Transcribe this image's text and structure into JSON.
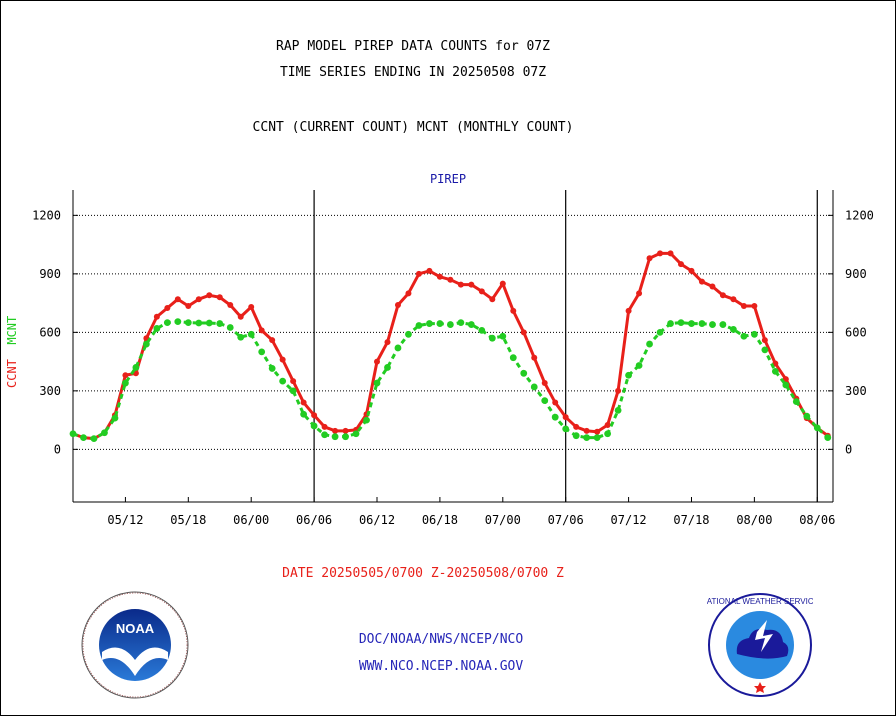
{
  "title_line1": "RAP MODEL PIREP DATA COUNTS for 07Z",
  "title_line2": "TIME SERIES ENDING IN 20250508 07Z",
  "title_line3": "CCNT (CURRENT COUNT) MCNT (MONTHLY COUNT)",
  "panel_label": "PIREP",
  "date_range": "DATE 20250505/0700 Z-20250508/0700 Z",
  "footer_org": "DOC/NOAA/NWS/NCEP/NCO",
  "footer_web": "WWW.NCO.NCEP.NOAA.GOV",
  "left_logo_text": "NOAA",
  "right_logo_text": "NATIONAL WEATHER SERVICE",
  "colors": {
    "ccnt": "#e8201a",
    "mcnt": "#22cc22",
    "text_blue": "#2626b8"
  },
  "chart_data": {
    "type": "line",
    "ylabel_ccnt": "CCNT",
    "ylabel_mcnt": "MCNT",
    "ylim": [
      -270,
      1330
    ],
    "yticks": [
      0,
      300,
      600,
      900,
      1200
    ],
    "xtick_labels": [
      "05/12",
      "05/18",
      "06/00",
      "06/06",
      "06/12",
      "06/18",
      "07/00",
      "07/06",
      "07/12",
      "07/18",
      "08/00",
      "08/06"
    ],
    "xtick_hours": [
      5,
      11,
      17,
      23,
      29,
      35,
      41,
      47,
      53,
      59,
      65,
      71
    ],
    "day_boundaries_hours": [
      23,
      47,
      71
    ],
    "x_start_hour": 0,
    "x_end_hour": 72.5,
    "grid": "horizontal dotted",
    "series": [
      {
        "name": "CCNT",
        "color": "#e8201a",
        "x": [
          0,
          1,
          2,
          3,
          4,
          5,
          6,
          7,
          8,
          9,
          10,
          11,
          12,
          13,
          14,
          15,
          16,
          17,
          18,
          19,
          20,
          21,
          22,
          23,
          24,
          25,
          26,
          27,
          28,
          29,
          30,
          31,
          32,
          33,
          34,
          35,
          36,
          37,
          38,
          39,
          40,
          41,
          42,
          43,
          44,
          45,
          46,
          47,
          48,
          49,
          50,
          51,
          52,
          53,
          54,
          55,
          56,
          57,
          58,
          59,
          60,
          61,
          62,
          63,
          64,
          65,
          66,
          67,
          68,
          69,
          70,
          71,
          72
        ],
        "values": [
          80,
          60,
          55,
          85,
          175,
          380,
          390,
          570,
          680,
          725,
          770,
          735,
          770,
          790,
          780,
          740,
          680,
          730,
          610,
          560,
          460,
          350,
          240,
          175,
          115,
          95,
          95,
          100,
          180,
          450,
          550,
          740,
          800,
          900,
          915,
          885,
          870,
          845,
          845,
          810,
          770,
          850,
          710,
          600,
          470,
          340,
          240,
          165,
          115,
          95,
          90,
          125,
          300,
          710,
          800,
          980,
          1005,
          1005,
          950,
          915,
          860,
          835,
          790,
          770,
          735,
          735,
          560,
          440,
          360,
          260,
          160,
          110,
          70
        ]
      },
      {
        "name": "MCNT",
        "color": "#22cc22",
        "x": [
          0,
          1,
          2,
          3,
          4,
          5,
          6,
          7,
          8,
          9,
          10,
          11,
          12,
          13,
          14,
          15,
          16,
          17,
          18,
          19,
          20,
          21,
          22,
          23,
          24,
          25,
          26,
          27,
          28,
          29,
          30,
          31,
          32,
          33,
          34,
          35,
          36,
          37,
          38,
          39,
          40,
          41,
          42,
          43,
          44,
          45,
          46,
          47,
          48,
          49,
          50,
          51,
          52,
          53,
          54,
          55,
          56,
          57,
          58,
          59,
          60,
          61,
          62,
          63,
          64,
          65,
          66,
          67,
          68,
          69,
          70,
          71,
          72
        ],
        "values": [
          80,
          60,
          55,
          85,
          160,
          340,
          420,
          540,
          620,
          650,
          655,
          650,
          648,
          648,
          645,
          625,
          575,
          590,
          500,
          415,
          350,
          300,
          180,
          120,
          75,
          65,
          65,
          80,
          150,
          340,
          420,
          520,
          590,
          635,
          645,
          645,
          640,
          650,
          640,
          610,
          570,
          580,
          470,
          390,
          320,
          250,
          165,
          105,
          70,
          60,
          60,
          80,
          200,
          380,
          430,
          540,
          600,
          645,
          650,
          645,
          645,
          640,
          640,
          615,
          580,
          590,
          510,
          400,
          330,
          245,
          170,
          110,
          60
        ]
      }
    ]
  }
}
